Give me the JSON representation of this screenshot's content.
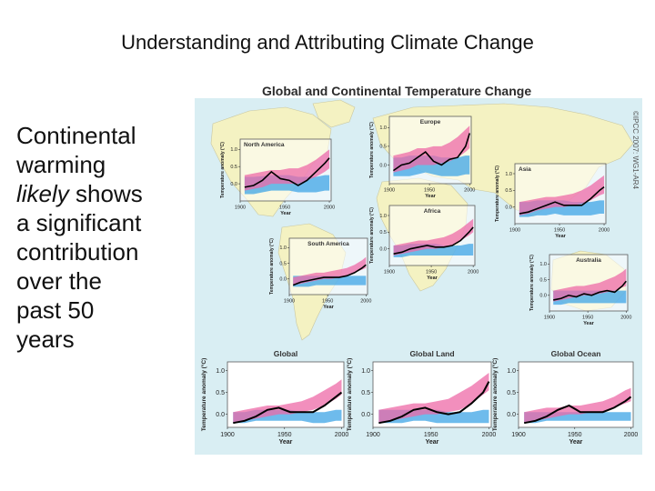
{
  "slide": {
    "title": "Understanding and Attributing Climate Change",
    "text_line1": "Continental",
    "text_line2": "warming",
    "text_italic": "likely",
    "text_after_italic": " shows",
    "text_line4": "a significant",
    "text_line5": "contribution",
    "text_line6": "over the",
    "text_line7": "past 50",
    "text_line8": "years"
  },
  "figure": {
    "title": "Global and Continental Temperature Change",
    "credit": "©IPCC 2007: WG1-AR4",
    "colors": {
      "background": "#d9eef3",
      "land": "#f4f2c2",
      "observed": "#000000",
      "natural_band": "#3da4e6",
      "natural_plus_anthropogenic_band": "#ee6aa7",
      "overlap": "#8c6ec8"
    }
  },
  "chart_data": [
    {
      "type": "line",
      "title": "North America",
      "ylabel": "Temperature anomaly (°C)",
      "xlabel": "Year",
      "xticks": [
        1900,
        1950,
        2000
      ],
      "yticks": [
        0.0,
        0.5,
        1.0
      ],
      "ylim": [
        -0.5,
        1.3
      ],
      "x": [
        1905,
        1915,
        1925,
        1935,
        1945,
        1955,
        1965,
        1975,
        1985,
        1995,
        2000
      ],
      "observed": [
        -0.1,
        -0.05,
        0.1,
        0.35,
        0.15,
        0.1,
        -0.05,
        0.1,
        0.35,
        0.6,
        0.75
      ],
      "natural_band": {
        "low": [
          -0.3,
          -0.3,
          -0.25,
          -0.2,
          -0.2,
          -0.2,
          -0.25,
          -0.25,
          -0.25,
          -0.2,
          -0.2
        ],
        "high": [
          0.2,
          0.2,
          0.22,
          0.25,
          0.25,
          0.25,
          0.2,
          0.2,
          0.2,
          0.25,
          0.25
        ]
      },
      "combined_band": {
        "low": [
          -0.2,
          -0.15,
          -0.1,
          0.0,
          0.0,
          0.0,
          0.0,
          0.1,
          0.2,
          0.35,
          0.45
        ],
        "high": [
          0.25,
          0.3,
          0.35,
          0.4,
          0.4,
          0.45,
          0.45,
          0.55,
          0.7,
          0.9,
          1.0
        ]
      }
    },
    {
      "type": "line",
      "title": "Europe",
      "ylabel": "Temperature anomaly (°C)",
      "xlabel": "Year",
      "xticks": [
        1900,
        1950,
        2000
      ],
      "yticks": [
        0.0,
        0.5,
        1.0
      ],
      "ylim": [
        -0.5,
        1.3
      ],
      "x": [
        1905,
        1915,
        1925,
        1935,
        1945,
        1955,
        1965,
        1975,
        1985,
        1995,
        2000
      ],
      "observed": [
        -0.15,
        0.0,
        0.05,
        0.2,
        0.35,
        0.1,
        0.0,
        0.15,
        0.2,
        0.5,
        0.85
      ],
      "natural_band": {
        "low": [
          -0.3,
          -0.3,
          -0.3,
          -0.25,
          -0.2,
          -0.25,
          -0.3,
          -0.3,
          -0.3,
          -0.25,
          -0.25
        ],
        "high": [
          0.2,
          0.2,
          0.25,
          0.25,
          0.25,
          0.25,
          0.2,
          0.2,
          0.2,
          0.25,
          0.25
        ]
      },
      "combined_band": {
        "low": [
          -0.2,
          -0.15,
          -0.1,
          0.0,
          0.0,
          0.0,
          0.05,
          0.1,
          0.2,
          0.35,
          0.45
        ],
        "high": [
          0.25,
          0.3,
          0.35,
          0.45,
          0.45,
          0.5,
          0.5,
          0.6,
          0.75,
          0.95,
          1.05
        ]
      }
    },
    {
      "type": "line",
      "title": "Asia",
      "ylabel": "Temperature anomaly (°C)",
      "xlabel": "Year",
      "xticks": [
        1900,
        1950,
        2000
      ],
      "yticks": [
        0.0,
        0.5,
        1.0
      ],
      "ylim": [
        -0.5,
        1.3
      ],
      "x": [
        1905,
        1915,
        1925,
        1935,
        1945,
        1955,
        1965,
        1975,
        1985,
        1995,
        2000
      ],
      "observed": [
        -0.2,
        -0.15,
        -0.05,
        0.05,
        0.15,
        0.05,
        0.05,
        0.05,
        0.25,
        0.5,
        0.6
      ],
      "natural_band": {
        "low": [
          -0.3,
          -0.3,
          -0.25,
          -0.25,
          -0.2,
          -0.25,
          -0.25,
          -0.25,
          -0.25,
          -0.2,
          -0.2
        ],
        "high": [
          0.15,
          0.15,
          0.2,
          0.2,
          0.2,
          0.2,
          0.15,
          0.15,
          0.15,
          0.2,
          0.2
        ]
      },
      "combined_band": {
        "low": [
          -0.25,
          -0.2,
          -0.1,
          -0.05,
          0.0,
          0.0,
          0.05,
          0.1,
          0.2,
          0.35,
          0.4
        ],
        "high": [
          0.15,
          0.2,
          0.25,
          0.3,
          0.3,
          0.35,
          0.4,
          0.5,
          0.65,
          0.85,
          0.95
        ]
      }
    },
    {
      "type": "line",
      "title": "Africa",
      "ylabel": "Temperature anomaly (°C)",
      "xlabel": "Year",
      "xticks": [
        1900,
        1950,
        2000
      ],
      "yticks": [
        0.0,
        0.5,
        1.0
      ],
      "ylim": [
        -0.5,
        1.3
      ],
      "x": [
        1905,
        1915,
        1925,
        1935,
        1945,
        1955,
        1965,
        1975,
        1985,
        1995,
        2000
      ],
      "observed": [
        -0.15,
        -0.1,
        0.0,
        0.05,
        0.1,
        0.05,
        0.05,
        0.1,
        0.25,
        0.5,
        0.65
      ],
      "natural_band": {
        "low": [
          -0.25,
          -0.25,
          -0.2,
          -0.2,
          -0.2,
          -0.2,
          -0.2,
          -0.2,
          -0.2,
          -0.2,
          -0.2
        ],
        "high": [
          0.1,
          0.1,
          0.15,
          0.15,
          0.15,
          0.15,
          0.1,
          0.1,
          0.1,
          0.15,
          0.15
        ]
      },
      "combined_band": {
        "low": [
          -0.2,
          -0.15,
          -0.1,
          -0.05,
          0.0,
          0.0,
          0.05,
          0.1,
          0.25,
          0.4,
          0.5
        ],
        "high": [
          0.1,
          0.15,
          0.2,
          0.25,
          0.25,
          0.3,
          0.35,
          0.45,
          0.6,
          0.8,
          0.9
        ]
      }
    },
    {
      "type": "line",
      "title": "South America",
      "ylabel": "Temperature anomaly (°C)",
      "xlabel": "Year",
      "xticks": [
        1900,
        1950,
        2000
      ],
      "yticks": [
        0.0,
        0.5,
        1.0
      ],
      "ylim": [
        -0.5,
        1.3
      ],
      "x": [
        1905,
        1915,
        1925,
        1935,
        1945,
        1955,
        1965,
        1975,
        1985,
        1995,
        2000
      ],
      "observed": [
        -0.2,
        -0.1,
        -0.05,
        0.0,
        0.05,
        0.05,
        0.05,
        0.1,
        0.2,
        0.35,
        0.45
      ],
      "natural_band": {
        "low": [
          -0.25,
          -0.25,
          -0.25,
          -0.2,
          -0.2,
          -0.2,
          -0.2,
          -0.2,
          -0.2,
          -0.2,
          -0.2
        ],
        "high": [
          0.1,
          0.1,
          0.1,
          0.1,
          0.1,
          0.1,
          0.1,
          0.1,
          0.1,
          0.1,
          0.1
        ]
      },
      "combined_band": {
        "low": [
          -0.2,
          -0.15,
          -0.1,
          -0.05,
          0.0,
          0.0,
          0.05,
          0.1,
          0.2,
          0.3,
          0.35
        ],
        "high": [
          0.05,
          0.1,
          0.15,
          0.2,
          0.2,
          0.25,
          0.3,
          0.35,
          0.45,
          0.6,
          0.7
        ]
      }
    },
    {
      "type": "line",
      "title": "Australia",
      "ylabel": "Temperature anomaly (°C)",
      "xlabel": "Year",
      "xticks": [
        1900,
        1950,
        2000
      ],
      "yticks": [
        0.0,
        0.5,
        1.0
      ],
      "ylim": [
        -0.5,
        1.3
      ],
      "x": [
        1905,
        1915,
        1925,
        1935,
        1945,
        1955,
        1965,
        1975,
        1985,
        1995,
        2000
      ],
      "observed": [
        -0.15,
        -0.1,
        0.0,
        -0.05,
        0.05,
        0.0,
        0.1,
        0.15,
        0.1,
        0.3,
        0.45
      ],
      "natural_band": {
        "low": [
          -0.3,
          -0.3,
          -0.25,
          -0.25,
          -0.25,
          -0.25,
          -0.25,
          -0.25,
          -0.25,
          -0.25,
          -0.25
        ],
        "high": [
          0.15,
          0.15,
          0.15,
          0.15,
          0.15,
          0.15,
          0.15,
          0.15,
          0.15,
          0.15,
          0.15
        ]
      },
      "combined_band": {
        "low": [
          -0.2,
          -0.15,
          -0.1,
          -0.05,
          0.0,
          0.0,
          0.05,
          0.1,
          0.15,
          0.25,
          0.3
        ],
        "high": [
          0.15,
          0.2,
          0.25,
          0.3,
          0.3,
          0.35,
          0.4,
          0.5,
          0.6,
          0.75,
          0.85
        ]
      }
    },
    {
      "type": "line",
      "title": "Global",
      "ylabel": "Temperature anomaly (°C)",
      "xlabel": "Year",
      "xticks": [
        1900,
        1950,
        2000
      ],
      "yticks": [
        0.0,
        0.5,
        1.0
      ],
      "ylim": [
        -0.3,
        1.2
      ],
      "x": [
        1905,
        1915,
        1925,
        1935,
        1945,
        1955,
        1965,
        1975,
        1985,
        1995,
        2000
      ],
      "observed": [
        -0.2,
        -0.15,
        -0.05,
        0.1,
        0.15,
        0.05,
        0.05,
        0.05,
        0.2,
        0.4,
        0.5
      ],
      "natural_band": {
        "low": [
          -0.2,
          -0.2,
          -0.15,
          -0.15,
          -0.15,
          -0.15,
          -0.15,
          -0.2,
          -0.2,
          -0.15,
          -0.15
        ],
        "high": [
          0.05,
          0.05,
          0.1,
          0.1,
          0.1,
          0.1,
          0.05,
          0.05,
          0.05,
          0.1,
          0.1
        ]
      },
      "combined_band": {
        "low": [
          -0.2,
          -0.15,
          -0.1,
          -0.05,
          0.0,
          0.0,
          0.05,
          0.1,
          0.2,
          0.35,
          0.45
        ],
        "high": [
          0.05,
          0.1,
          0.15,
          0.2,
          0.2,
          0.25,
          0.3,
          0.4,
          0.55,
          0.7,
          0.8
        ]
      }
    },
    {
      "type": "line",
      "title": "Global Land",
      "ylabel": "Temperature anomaly (°C)",
      "xlabel": "Year",
      "xticks": [
        1900,
        1950,
        2000
      ],
      "yticks": [
        0.0,
        0.5,
        1.0
      ],
      "ylim": [
        -0.3,
        1.2
      ],
      "x": [
        1905,
        1915,
        1925,
        1935,
        1945,
        1955,
        1965,
        1975,
        1985,
        1995,
        2000
      ],
      "observed": [
        -0.2,
        -0.15,
        -0.05,
        0.1,
        0.15,
        0.05,
        0.0,
        0.05,
        0.25,
        0.5,
        0.75
      ],
      "natural_band": {
        "low": [
          -0.2,
          -0.2,
          -0.2,
          -0.15,
          -0.15,
          -0.2,
          -0.2,
          -0.2,
          -0.2,
          -0.2,
          -0.2
        ],
        "high": [
          0.1,
          0.1,
          0.1,
          0.1,
          0.1,
          0.1,
          0.05,
          0.05,
          0.05,
          0.1,
          0.1
        ]
      },
      "combined_band": {
        "low": [
          -0.2,
          -0.15,
          -0.1,
          -0.05,
          0.0,
          0.0,
          0.05,
          0.1,
          0.25,
          0.45,
          0.55
        ],
        "high": [
          0.1,
          0.15,
          0.2,
          0.25,
          0.25,
          0.3,
          0.35,
          0.5,
          0.65,
          0.85,
          0.95
        ]
      }
    },
    {
      "type": "line",
      "title": "Global Ocean",
      "ylabel": "Temperature anomaly (°C)",
      "xlabel": "Year",
      "xticks": [
        1900,
        1950,
        2000
      ],
      "yticks": [
        0.0,
        0.5,
        1.0
      ],
      "ylim": [
        -0.3,
        1.2
      ],
      "x": [
        1905,
        1915,
        1925,
        1935,
        1945,
        1955,
        1965,
        1975,
        1985,
        1995,
        2000
      ],
      "observed": [
        -0.2,
        -0.15,
        -0.05,
        0.1,
        0.2,
        0.05,
        0.05,
        0.05,
        0.15,
        0.3,
        0.4
      ],
      "natural_band": {
        "low": [
          -0.2,
          -0.2,
          -0.15,
          -0.15,
          -0.15,
          -0.15,
          -0.15,
          -0.15,
          -0.15,
          -0.15,
          -0.15
        ],
        "high": [
          0.05,
          0.05,
          0.05,
          0.05,
          0.05,
          0.05,
          0.05,
          0.05,
          0.05,
          0.05,
          0.05
        ]
      },
      "combined_band": {
        "low": [
          -0.2,
          -0.15,
          -0.1,
          -0.05,
          0.0,
          0.0,
          0.05,
          0.05,
          0.15,
          0.25,
          0.3
        ],
        "high": [
          0.05,
          0.1,
          0.15,
          0.15,
          0.2,
          0.2,
          0.25,
          0.3,
          0.4,
          0.55,
          0.6
        ]
      }
    }
  ]
}
